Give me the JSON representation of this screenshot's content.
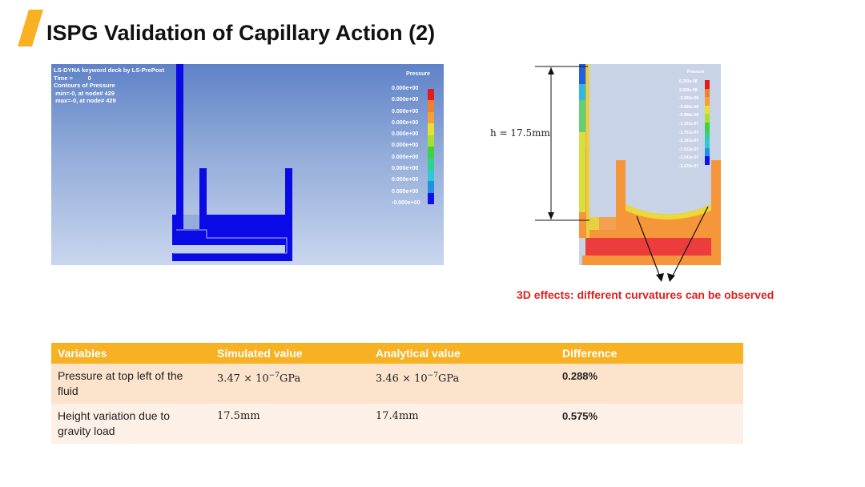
{
  "title": "ISPG Validation of Capillary Action (2)",
  "colors": {
    "accent": "#f9b124",
    "note": "#e02020",
    "fluid": "#0a0ae6"
  },
  "sim_left": {
    "info_lines": [
      "LS-DYNA keyword deck by LS-PrePost",
      "Time =         0",
      "Contours of Pressure",
      " min=-0, at node# 429",
      " max=-0, at node# 429"
    ],
    "legend_title": "Pressure",
    "legend_values": [
      "0.000e+00",
      "0.000e+00",
      "0.000e+00",
      "0.000e+00",
      "0.000e+00",
      "0.000e+00",
      "0.000e+00",
      "0.000e+00",
      "0.000e+00",
      "0.000e+00",
      "-0.000e+00"
    ]
  },
  "sim_right": {
    "legend_title": "Pressure",
    "legend_values": [
      "6.293e-08",
      "2.993e-08",
      "-3.066e-09",
      "-4.606e-08",
      "-6.906e-08",
      "-1.321e-07",
      "-1.751e-07",
      "-2.181e-07",
      "-2.613e-07",
      "-3.043e-07",
      "-3.470e-07"
    ],
    "height_label": "h = 17.5mm"
  },
  "note": "3D effects: different curvatures  can be observed",
  "table": {
    "headers": [
      "Variables",
      "Simulated value",
      "Analytical value",
      "Difference"
    ],
    "rows": [
      {
        "variable": "Pressure at top left of the fluid",
        "sim_mantissa": "3.47 × 10",
        "sim_exp": "−7",
        "sim_unit": "GPa",
        "ana_mantissa": "3.46 × 10",
        "ana_exp": "−7",
        "ana_unit": "GPa",
        "difference": "0.288%"
      },
      {
        "variable": "Height variation due to gravity load",
        "simulated": "17.5mm",
        "analytical": "17.4mm",
        "difference": "0.575%"
      }
    ]
  }
}
